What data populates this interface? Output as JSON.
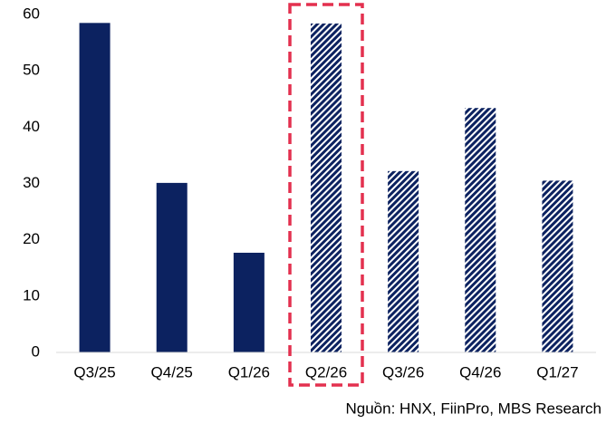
{
  "chart_data": {
    "type": "bar",
    "categories": [
      "Q3/25",
      "Q4/25",
      "Q1/26",
      "Q2/26",
      "Q3/26",
      "Q4/26",
      "Q1/27"
    ],
    "values": [
      58.5,
      30.1,
      17.7,
      58.4,
      32.2,
      43.4,
      30.5
    ],
    "hatched": [
      false,
      false,
      false,
      true,
      true,
      true,
      true
    ],
    "highlight_index": 3,
    "color": "#0c2260",
    "highlight_color": "#e3304f",
    "ylim": [
      0,
      60
    ],
    "yticks": [
      0,
      10,
      20,
      30,
      40,
      50,
      60
    ],
    "grid": false,
    "source": "Nguồn: HNX, FiinPro, MBS Research"
  }
}
